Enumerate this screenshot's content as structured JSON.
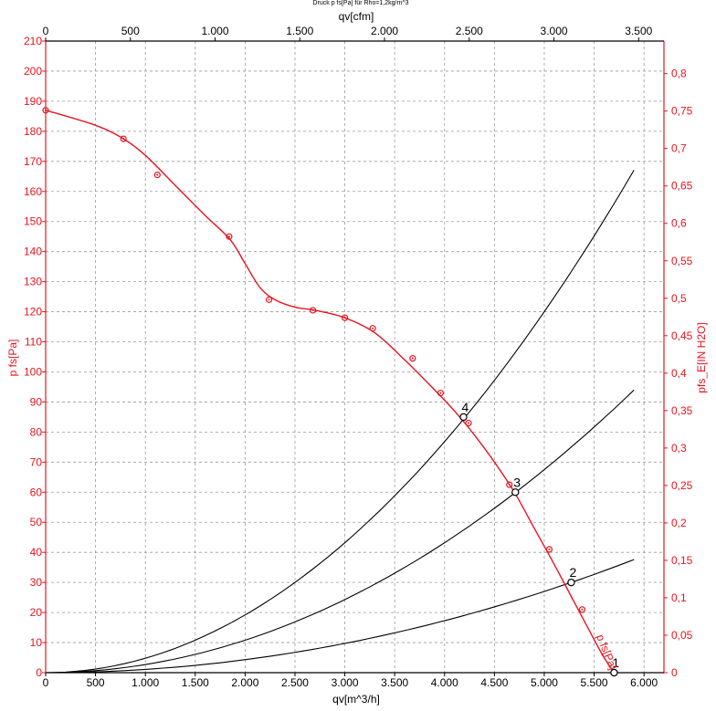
{
  "chart_data": {
    "type": "line",
    "title": "Druck p fs[Pa] für Rho=1,2kg/m^3",
    "xlabel_bottom": "qv[m^3/h]",
    "xlabel_top": "qv[cfm]",
    "ylabel_left": "p fs[Pa]",
    "ylabel_right": "pfs_E[IN H2O]",
    "curve_label": "p fs[Pa]",
    "xlim": [
      0,
      6200
    ],
    "ylim": [
      0,
      210
    ],
    "x_ticks": [
      0,
      500,
      1000,
      1500,
      2000,
      2500,
      3000,
      3500,
      4000,
      4500,
      5000,
      5500,
      6000
    ],
    "x_tick_labels": [
      "0",
      "500",
      "1.000",
      "1.500",
      "2.000",
      "2.500",
      "3.000",
      "3.500",
      "4.000",
      "4.500",
      "5.000",
      "5.500",
      "6.000"
    ],
    "y_ticks": [
      0,
      10,
      20,
      30,
      40,
      50,
      60,
      70,
      80,
      90,
      100,
      110,
      120,
      130,
      140,
      150,
      160,
      170,
      180,
      190,
      200,
      210
    ],
    "y_tick_labels": [
      "0",
      "10",
      "20",
      "30",
      "40",
      "50",
      "60",
      "70",
      "80",
      "90",
      "100",
      "110",
      "120",
      "130",
      "140",
      "150",
      "160",
      "170",
      "180",
      "190",
      "200",
      "210"
    ],
    "x2_ticks": [
      0,
      500,
      1000,
      1500,
      2000,
      2500,
      3000,
      3500
    ],
    "x2_tick_labels": [
      "0",
      "500",
      "1.000",
      "1.500",
      "2.000",
      "2.500",
      "3.000",
      "3.500"
    ],
    "y2_ticks": [
      0,
      0.05,
      0.1,
      0.15,
      0.2,
      0.25,
      0.3,
      0.35,
      0.4,
      0.45,
      0.5,
      0.55,
      0.6,
      0.65,
      0.7,
      0.75,
      0.8
    ],
    "y2_tick_labels": [
      "0",
      "0,05",
      "0,1",
      "0,15",
      "0,2",
      "0,25",
      "0,3",
      "0,35",
      "0,4",
      "0,45",
      "0,5",
      "0,55",
      "0,6",
      "0,65",
      "0,7",
      "0,75",
      "0,8"
    ],
    "grid": true,
    "fan_curve": {
      "color": "#e8141e",
      "x": [
        0,
        500,
        780,
        1000,
        1300,
        1600,
        1850,
        2000,
        2150,
        2300,
        2500,
        2700,
        3000,
        3300,
        3600,
        3900,
        4100,
        4300,
        4500,
        4700,
        4900,
        5100,
        5300,
        5500,
        5600,
        5700
      ],
      "y": [
        187,
        182,
        177.5,
        172,
        162,
        152,
        144,
        136,
        128,
        124,
        121.5,
        120.5,
        118,
        113,
        104,
        94,
        87,
        79,
        70,
        60,
        48,
        36,
        23.5,
        11,
        5,
        0
      ]
    },
    "measured_points": {
      "x": [
        0,
        780,
        1120,
        1840,
        2240,
        2680,
        3000,
        3280,
        3680,
        3960,
        4240,
        4650,
        5050,
        5380
      ],
      "y": [
        187,
        177.5,
        165.5,
        145,
        124,
        120.5,
        118,
        114.5,
        104.5,
        93,
        83,
        62.5,
        41,
        21
      ]
    },
    "system_curves": [
      {
        "label": "1",
        "k": 0.0
      },
      {
        "label": "2",
        "k": 1.08e-06
      },
      {
        "label": "3",
        "k": 2.7e-06
      },
      {
        "label": "4",
        "k": 4.8e-06
      }
    ],
    "system_curve_x_end": 5900,
    "operating_points": [
      {
        "label": "1",
        "x": 5700,
        "y": 0
      },
      {
        "label": "2",
        "x": 5270,
        "y": 30
      },
      {
        "label": "3",
        "x": 4710,
        "y": 60
      },
      {
        "label": "4",
        "x": 4190,
        "y": 85
      }
    ]
  }
}
